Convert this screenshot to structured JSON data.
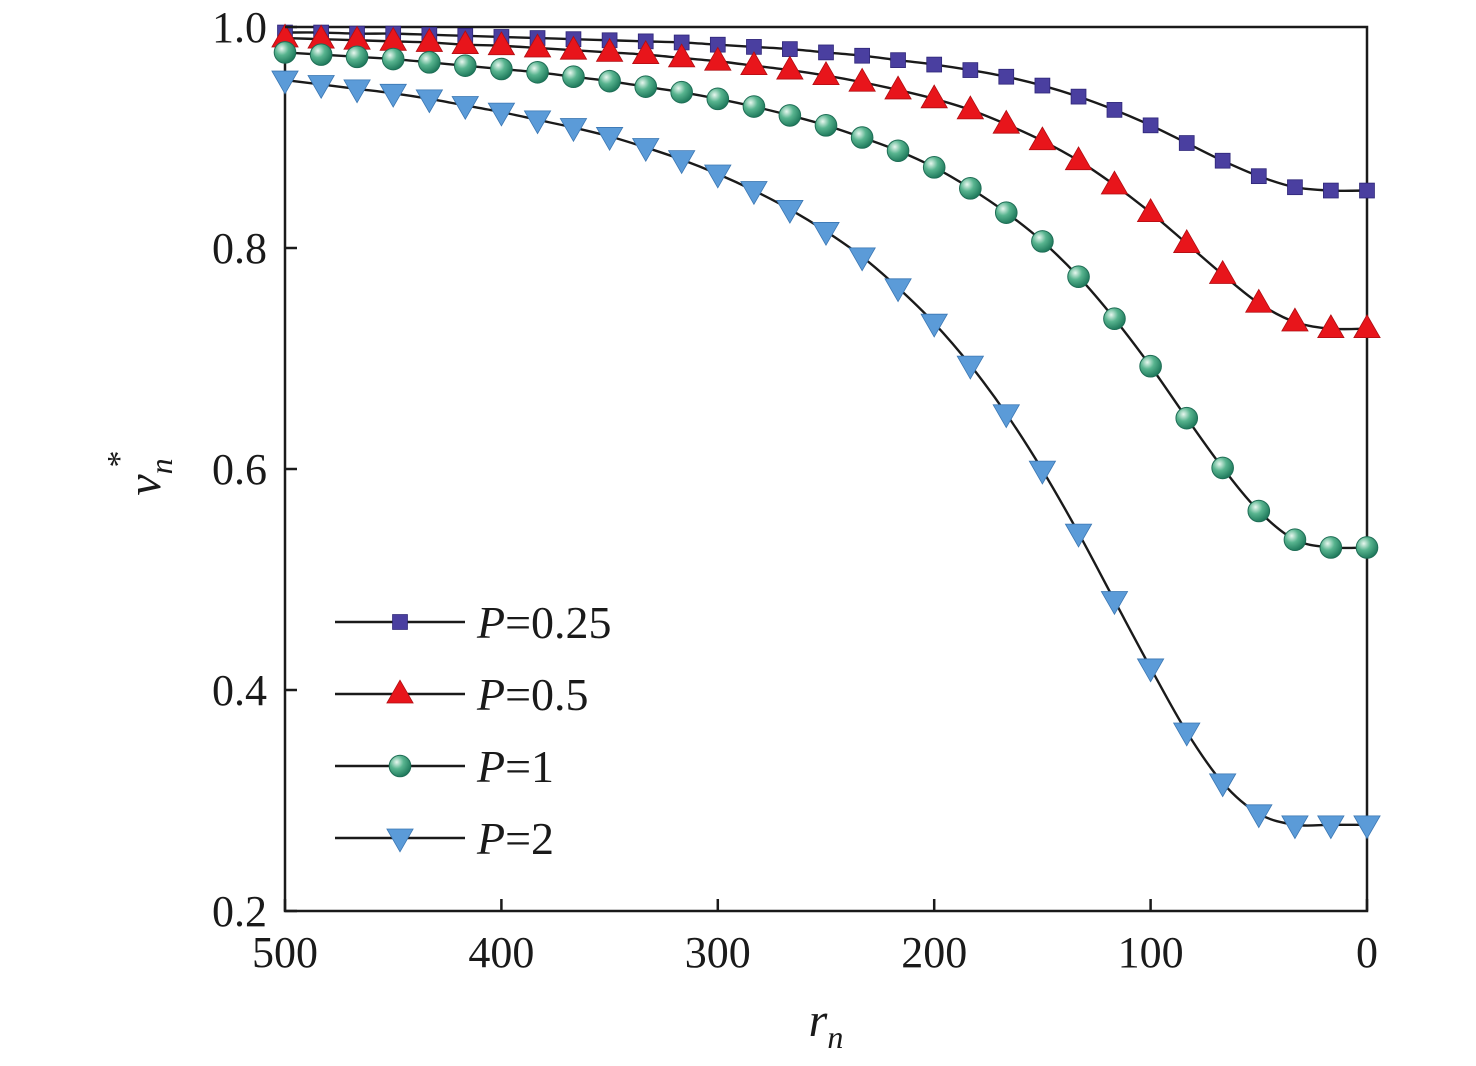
{
  "chart_data": {
    "type": "line",
    "xlabel": {
      "base": "r",
      "sub": "n"
    },
    "ylabel": {
      "base": "v",
      "sub": "n",
      "sup": "*"
    },
    "xlim": [
      500,
      0
    ],
    "ylim": [
      0.2,
      1.0
    ],
    "x_ticks": [
      500,
      400,
      300,
      200,
      100,
      0
    ],
    "y_ticks": [
      0.2,
      0.4,
      0.6,
      0.8,
      1.0
    ],
    "x_tick_labels": [
      "500",
      "400",
      "300",
      "200",
      "100",
      "0"
    ],
    "y_tick_labels": [
      "0.2",
      "0.4",
      "0.6",
      "0.8",
      "1.0"
    ],
    "grid": false,
    "legend_position": "bottom-left",
    "x": [
      500,
      483.3,
      466.7,
      450,
      433.3,
      416.7,
      400,
      383.3,
      366.7,
      350,
      333.3,
      316.7,
      300,
      283.3,
      266.7,
      250,
      233.3,
      216.7,
      200,
      183.3,
      166.7,
      150,
      133.3,
      116.7,
      100,
      83.3,
      66.7,
      50,
      33.3,
      16.7,
      0
    ],
    "series": [
      {
        "name_var": "P",
        "name_rest": "=0.25",
        "marker": "square",
        "color": "#4a3fa0",
        "values": [
          0.995,
          0.995,
          0.994,
          0.994,
          0.993,
          0.992,
          0.991,
          0.99,
          0.989,
          0.988,
          0.987,
          0.986,
          0.984,
          0.982,
          0.98,
          0.977,
          0.974,
          0.97,
          0.966,
          0.961,
          0.955,
          0.947,
          0.937,
          0.925,
          0.911,
          0.895,
          0.879,
          0.865,
          0.855,
          0.852,
          0.852
        ]
      },
      {
        "name_var": "P",
        "name_rest": "=0.5",
        "marker": "triangle-up",
        "color": "#e8151b",
        "values": [
          0.99,
          0.989,
          0.988,
          0.987,
          0.986,
          0.984,
          0.983,
          0.981,
          0.979,
          0.977,
          0.975,
          0.972,
          0.969,
          0.965,
          0.961,
          0.956,
          0.95,
          0.943,
          0.935,
          0.925,
          0.912,
          0.897,
          0.879,
          0.857,
          0.832,
          0.804,
          0.776,
          0.75,
          0.733,
          0.727,
          0.727
        ]
      },
      {
        "name_var": "P",
        "name_rest": "=1",
        "marker": "circle",
        "color": "#3a9a7c",
        "values": [
          0.977,
          0.975,
          0.973,
          0.971,
          0.968,
          0.965,
          0.962,
          0.959,
          0.955,
          0.951,
          0.946,
          0.941,
          0.935,
          0.928,
          0.92,
          0.911,
          0.9,
          0.888,
          0.873,
          0.854,
          0.832,
          0.806,
          0.774,
          0.736,
          0.693,
          0.646,
          0.601,
          0.562,
          0.536,
          0.529,
          0.529
        ]
      },
      {
        "name_var": "P",
        "name_rest": "=2",
        "marker": "triangle-down",
        "color": "#5b9bd8",
        "values": [
          0.952,
          0.948,
          0.944,
          0.94,
          0.935,
          0.929,
          0.923,
          0.916,
          0.909,
          0.901,
          0.891,
          0.88,
          0.867,
          0.852,
          0.835,
          0.815,
          0.792,
          0.764,
          0.732,
          0.694,
          0.65,
          0.599,
          0.542,
          0.481,
          0.42,
          0.362,
          0.316,
          0.288,
          0.278,
          0.278,
          0.278
        ]
      }
    ]
  }
}
